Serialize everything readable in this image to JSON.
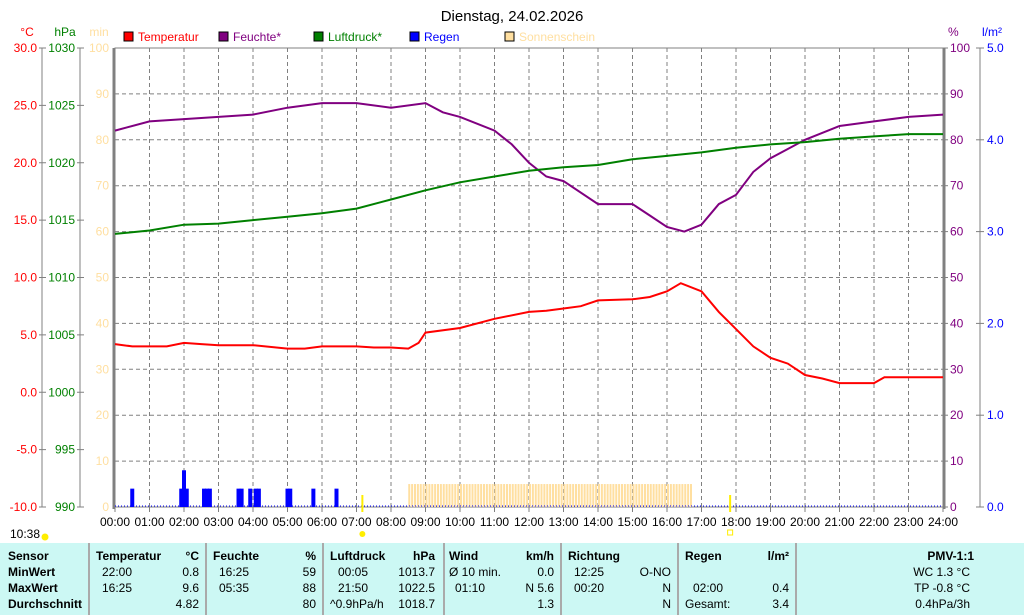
{
  "title": "Dienstag, 24.02.2026",
  "current_time": "10:38",
  "colors": {
    "temp": "#ff0000",
    "hum": "#800080",
    "press": "#008000",
    "rain": "#0000ff",
    "sun": "#ffdfa0",
    "grid": "#808080",
    "table_bg": "#ccf8f4"
  },
  "chart_data": {
    "type": "line",
    "title": "Dienstag, 24.02.2026",
    "x_ticks": [
      "00:00",
      "01:00",
      "02:00",
      "03:00",
      "04:00",
      "05:00",
      "06:00",
      "07:00",
      "08:00",
      "09:00",
      "10:00",
      "11:00",
      "12:00",
      "13:00",
      "14:00",
      "15:00",
      "16:00",
      "17:00",
      "18:00",
      "19:00",
      "20:00",
      "21:00",
      "22:00",
      "23:00",
      "24:00"
    ],
    "xlim_hours": [
      0,
      24
    ],
    "legend": [
      "Temperatur",
      "Feuchte*",
      "Luftdruck*",
      "Regen",
      "Sonnenschein"
    ],
    "axes": {
      "temp": {
        "unit": "°C",
        "range": [
          -10,
          30
        ],
        "ticks": [
          "30.0",
          "25.0",
          "20.0",
          "15.0",
          "10.0",
          "5.0",
          "0.0",
          "-5.0",
          "-10.0"
        ]
      },
      "press": {
        "unit": "hPa",
        "range": [
          990,
          1030
        ],
        "ticks": [
          "1030",
          "1025",
          "1020",
          "1015",
          "1010",
          "1005",
          "1000",
          "995",
          "990"
        ]
      },
      "sun": {
        "unit": "min",
        "range": [
          0,
          100
        ],
        "ticks": [
          "100",
          "90",
          "80",
          "70",
          "60",
          "50",
          "40",
          "30",
          "20",
          "10",
          "0"
        ]
      },
      "hum": {
        "unit": "%",
        "range": [
          0,
          100
        ],
        "ticks": [
          "100",
          "90",
          "80",
          "70",
          "60",
          "50",
          "40",
          "30",
          "20",
          "10",
          "0"
        ]
      },
      "rain": {
        "unit": "l/m²",
        "range": [
          0,
          5
        ],
        "ticks": [
          "5.0",
          "4.0",
          "3.0",
          "2.0",
          "1.0",
          "0.0"
        ]
      }
    },
    "series": [
      {
        "name": "Temperatur",
        "axis": "temp",
        "x": [
          0,
          0.5,
          1,
          1.5,
          2,
          2.5,
          3,
          4,
          5,
          5.5,
          6,
          7,
          7.5,
          8,
          8.5,
          8.8,
          9,
          10,
          11,
          12,
          12.5,
          13,
          13.5,
          14,
          15,
          15.5,
          16,
          16.4,
          17,
          17.5,
          18,
          18.5,
          19,
          19.5,
          20,
          20.5,
          21,
          22,
          22.3,
          23,
          24
        ],
        "y": [
          4.2,
          4.0,
          4.0,
          4.0,
          4.3,
          4.2,
          4.1,
          4.1,
          3.8,
          3.8,
          4.0,
          4.0,
          3.9,
          3.9,
          3.8,
          4.3,
          5.2,
          5.6,
          6.4,
          7.0,
          7.1,
          7.3,
          7.5,
          8.0,
          8.1,
          8.3,
          8.8,
          9.5,
          8.8,
          7.0,
          5.5,
          4.0,
          3.0,
          2.5,
          1.5,
          1.2,
          0.8,
          0.8,
          1.3,
          1.3,
          1.3
        ]
      },
      {
        "name": "Feuchte*",
        "axis": "hum",
        "x": [
          0,
          1,
          2,
          3,
          4,
          5,
          6,
          7,
          8,
          9,
          9.5,
          10,
          11,
          11.5,
          12,
          12.5,
          13,
          14,
          15,
          15.5,
          16,
          16.5,
          17,
          17.5,
          18,
          18.5,
          19,
          19.5,
          20,
          21,
          22,
          23,
          24
        ],
        "y": [
          82,
          84,
          84.5,
          85,
          85.5,
          87,
          88,
          88,
          87,
          88,
          86,
          85,
          82,
          79,
          75,
          72,
          71,
          66,
          66,
          63.5,
          61,
          60,
          61.5,
          66,
          68,
          73,
          76,
          78,
          80,
          83,
          84,
          85,
          85.5
        ]
      },
      {
        "name": "Luftdruck*",
        "axis": "press",
        "x": [
          0,
          1,
          2,
          3,
          4,
          5,
          6,
          7,
          8,
          9,
          10,
          11,
          12,
          13,
          14,
          15,
          16,
          17,
          18,
          19,
          20,
          21,
          22,
          23,
          24
        ],
        "y": [
          1013.8,
          1014.1,
          1014.6,
          1014.7,
          1015.0,
          1015.3,
          1015.6,
          1016.0,
          1016.8,
          1017.6,
          1018.3,
          1018.8,
          1019.3,
          1019.6,
          1019.8,
          1020.3,
          1020.6,
          1020.9,
          1021.3,
          1021.6,
          1021.8,
          1022.1,
          1022.3,
          1022.5,
          1022.5
        ]
      },
      {
        "name": "Regen",
        "axis": "rain",
        "type": "bar",
        "x": [
          0.5,
          1.92,
          2.0,
          2.08,
          2.58,
          2.67,
          2.75,
          3.58,
          3.67,
          3.92,
          4.08,
          4.17,
          5.0,
          5.08,
          5.75,
          6.42
        ],
        "y": [
          0.2,
          0.2,
          0.4,
          0.2,
          0.2,
          0.2,
          0.2,
          0.2,
          0.2,
          0.2,
          0.2,
          0.2,
          0.2,
          0.2,
          0.2,
          0.2
        ]
      },
      {
        "name": "Sonnenschein",
        "axis": "sun",
        "type": "bar",
        "from_hour": 8.5,
        "to_hour": 16.75,
        "value_min": 5
      }
    ],
    "sunrise_hour": 7.17,
    "sunset_hour": 17.83
  },
  "table": {
    "sensor": {
      "header": "Sensor",
      "rows": [
        "MinWert",
        "MaxWert",
        "Durchschnitt"
      ]
    },
    "temp": {
      "header": "Temperatur",
      "unit": "°C",
      "min_time": "22:00",
      "min": "0.8",
      "max_time": "16:25",
      "max": "9.6",
      "avg": "4.82"
    },
    "hum": {
      "header": "Feuchte",
      "unit": "%",
      "min_time": "16:25",
      "min": "59",
      "max_time": "05:35",
      "max": "88",
      "avg": "80"
    },
    "press": {
      "header": "Luftdruck",
      "unit": "hPa",
      "min_time": "00:05",
      "min": "1013.7",
      "max_time": "21:50",
      "max": "1022.5",
      "trend": "^0.9hPa/h",
      "avg": "1018.7"
    },
    "wind": {
      "header": "Wind",
      "unit": "km/h",
      "r1_label": "Ø 10 min.",
      "r1": "0.0",
      "r2_label": "01:10",
      "r2": "N 5.6",
      "avg": "1.3"
    },
    "dir": {
      "header": "Richtung",
      "r1_time": "12:25",
      "r1": "O-NO",
      "r2_time": "00:20",
      "r2": "N",
      "avg": "N"
    },
    "rain": {
      "header": "Regen",
      "unit": "l/m²",
      "r2_time": "02:00",
      "r2": "0.4",
      "total_label": "Gesamt:",
      "total": "3.4"
    },
    "pmv": {
      "header": "PMV-1:1",
      "wc": "WC 1.3 °C",
      "tp": "TP -0.8 °C",
      "trend": "0.4hPa/3h"
    }
  }
}
